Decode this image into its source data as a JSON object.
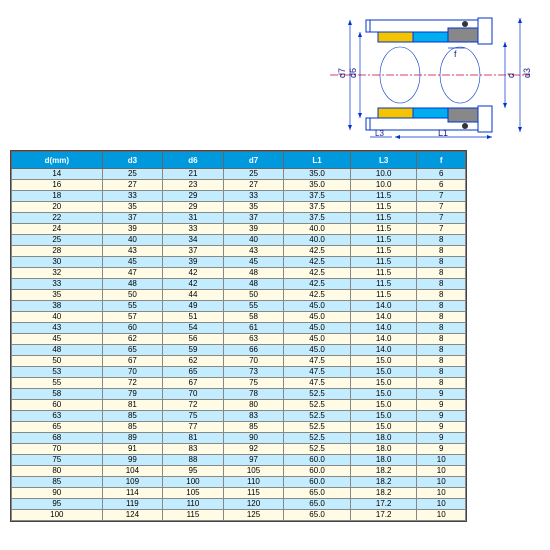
{
  "diagram": {
    "labels": {
      "d3": "d3",
      "d6": "d6",
      "d7": "d7",
      "L1": "L1",
      "L3": "L3",
      "f": "f"
    },
    "colors": {
      "outline": "#0033cc",
      "centerline": "#cc0033",
      "fill_yellow": "#f5c400",
      "fill_blue": "#00aeef",
      "fill_gray": "#888888",
      "bg": "#ffffff",
      "label_text": "#1a1a8a"
    }
  },
  "table": {
    "headers": [
      "d(mm)",
      "d3",
      "d6",
      "d7",
      "L1",
      "L3",
      "f"
    ],
    "header_bg": "#0099dd",
    "header_fg": "#ffffff",
    "row_blue": "#c4ecff",
    "row_cream": "#fffbe5",
    "rows": [
      [
        "14",
        "25",
        "21",
        "25",
        "35.0",
        "10.0",
        "6"
      ],
      [
        "16",
        "27",
        "23",
        "27",
        "35.0",
        "10.0",
        "6"
      ],
      [
        "18",
        "33",
        "29",
        "33",
        "37.5",
        "11.5",
        "7"
      ],
      [
        "20",
        "35",
        "29",
        "35",
        "37.5",
        "11.5",
        "7"
      ],
      [
        "22",
        "37",
        "31",
        "37",
        "37.5",
        "11.5",
        "7"
      ],
      [
        "24",
        "39",
        "33",
        "39",
        "40.0",
        "11.5",
        "7"
      ],
      [
        "25",
        "40",
        "34",
        "40",
        "40.0",
        "11.5",
        "8"
      ],
      [
        "28",
        "43",
        "37",
        "43",
        "42.5",
        "11.5",
        "8"
      ],
      [
        "30",
        "45",
        "39",
        "45",
        "42.5",
        "11.5",
        "8"
      ],
      [
        "32",
        "47",
        "42",
        "48",
        "42.5",
        "11.5",
        "8"
      ],
      [
        "33",
        "48",
        "42",
        "48",
        "42.5",
        "11.5",
        "8"
      ],
      [
        "35",
        "50",
        "44",
        "50",
        "42.5",
        "11.5",
        "8"
      ],
      [
        "38",
        "55",
        "49",
        "55",
        "45.0",
        "14.0",
        "8"
      ],
      [
        "40",
        "57",
        "51",
        "58",
        "45.0",
        "14.0",
        "8"
      ],
      [
        "43",
        "60",
        "54",
        "61",
        "45.0",
        "14.0",
        "8"
      ],
      [
        "45",
        "62",
        "56",
        "63",
        "45.0",
        "14.0",
        "8"
      ],
      [
        "48",
        "65",
        "59",
        "66",
        "45.0",
        "14.0",
        "8"
      ],
      [
        "50",
        "67",
        "62",
        "70",
        "47.5",
        "15.0",
        "8"
      ],
      [
        "53",
        "70",
        "65",
        "73",
        "47.5",
        "15.0",
        "8"
      ],
      [
        "55",
        "72",
        "67",
        "75",
        "47.5",
        "15.0",
        "8"
      ],
      [
        "58",
        "79",
        "70",
        "78",
        "52.5",
        "15.0",
        "9"
      ],
      [
        "60",
        "81",
        "72",
        "80",
        "52.5",
        "15.0",
        "9"
      ],
      [
        "63",
        "85",
        "75",
        "83",
        "52.5",
        "15.0",
        "9"
      ],
      [
        "65",
        "85",
        "77",
        "85",
        "52.5",
        "15.0",
        "9"
      ],
      [
        "68",
        "89",
        "81",
        "90",
        "52.5",
        "18.0",
        "9"
      ],
      [
        "70",
        "91",
        "83",
        "92",
        "52.5",
        "18.0",
        "9"
      ],
      [
        "75",
        "99",
        "88",
        "97",
        "60.0",
        "18.0",
        "10"
      ],
      [
        "80",
        "104",
        "95",
        "105",
        "60.0",
        "18.2",
        "10"
      ],
      [
        "85",
        "109",
        "100",
        "110",
        "60.0",
        "18.2",
        "10"
      ],
      [
        "90",
        "114",
        "105",
        "115",
        "65.0",
        "18.2",
        "10"
      ],
      [
        "95",
        "119",
        "110",
        "120",
        "65.0",
        "17.2",
        "10"
      ],
      [
        "100",
        "124",
        "115",
        "125",
        "65.0",
        "17.2",
        "10"
      ]
    ]
  }
}
